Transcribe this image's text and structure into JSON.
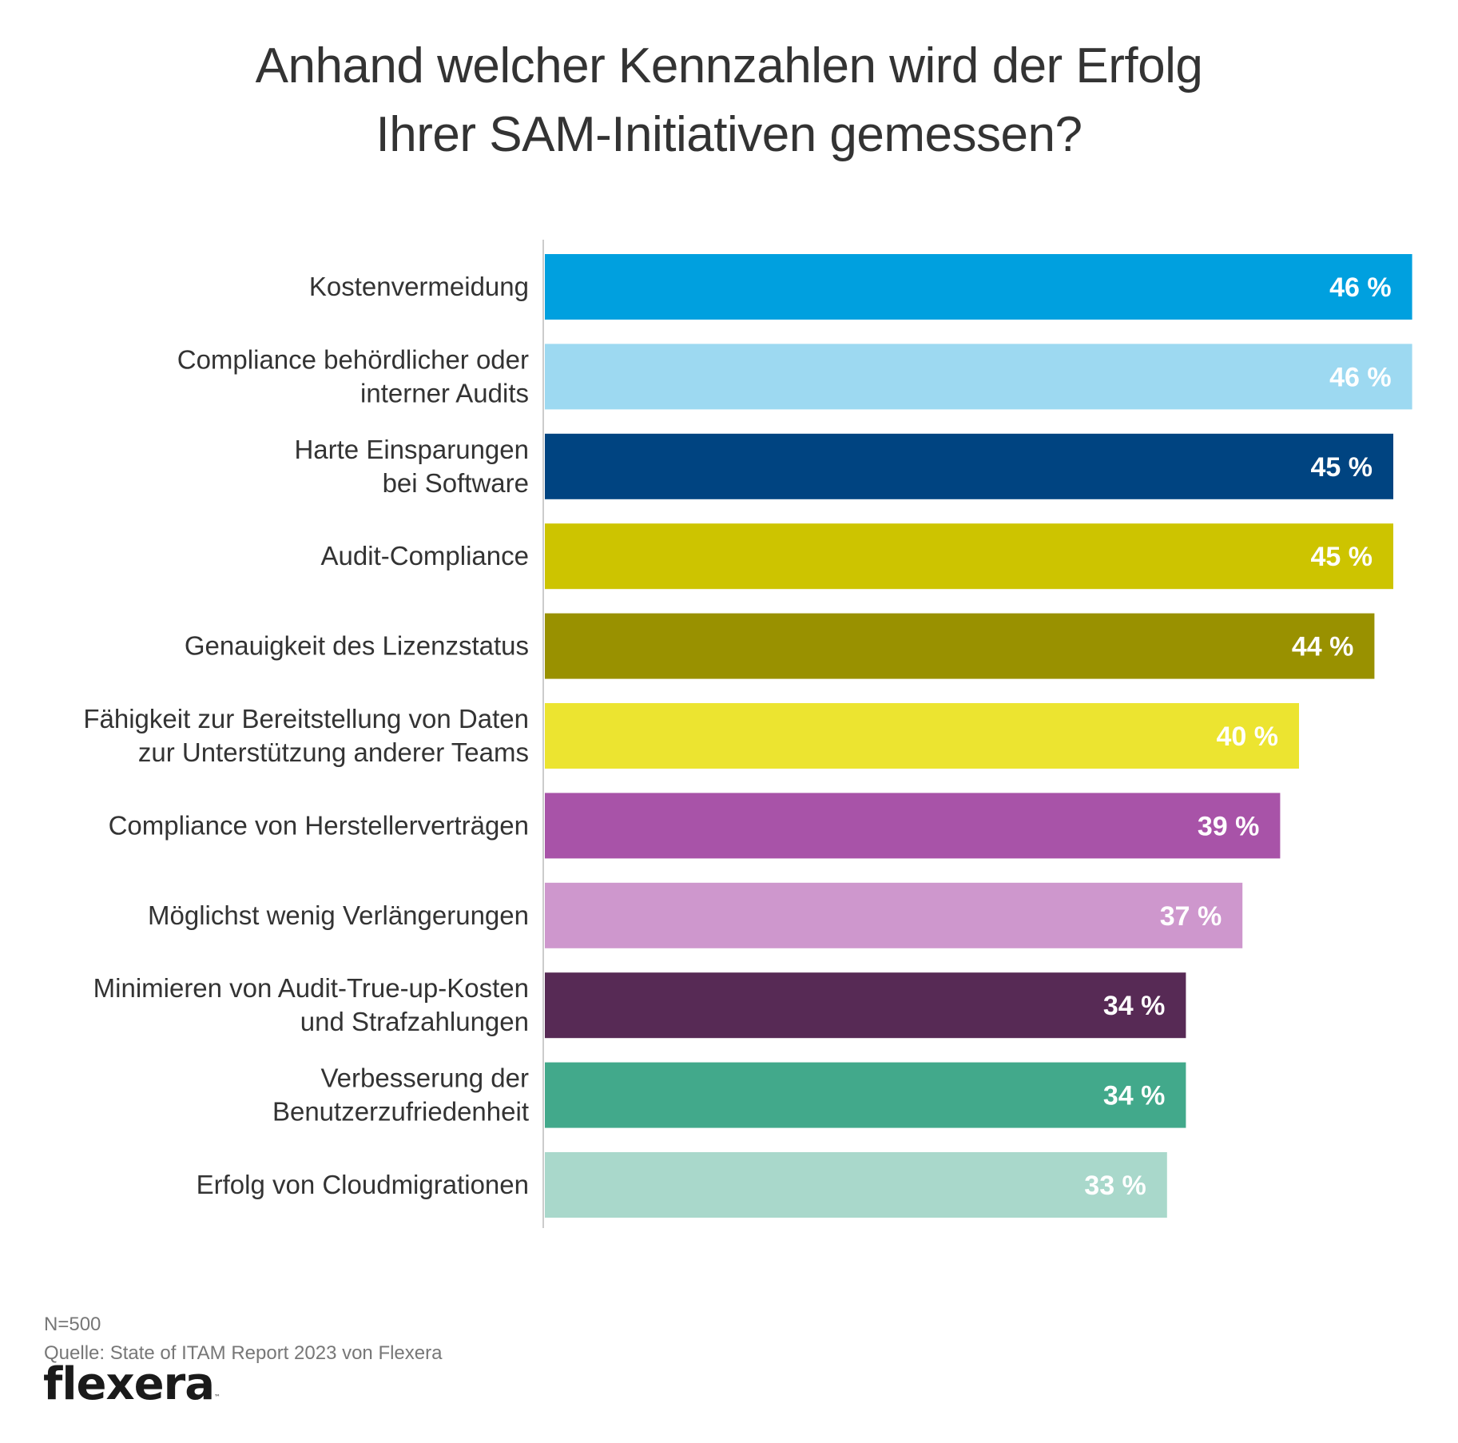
{
  "chart_data": {
    "type": "bar",
    "orientation": "horizontal",
    "title": "Anhand welcher Kennzahlen wird der Erfolg Ihrer SAM-Initiativen gemessen?",
    "title_lines": [
      "Anhand welcher Kennzahlen wird der Erfolg",
      "Ihrer SAM-Initiativen gemessen?"
    ],
    "xlabel": "",
    "ylabel": "",
    "unit": "%",
    "xlim": [
      0,
      46
    ],
    "grid": false,
    "legend": "none",
    "categories": [
      [
        "Kostenvermeidung"
      ],
      [
        "Compliance behördlicher oder",
        "interner Audits"
      ],
      [
        "Harte Einsparungen",
        "bei Software"
      ],
      [
        "Audit-Compliance"
      ],
      [
        "Genauigkeit des Lizenzstatus"
      ],
      [
        "Fähigkeit zur Bereitstellung von Daten",
        "zur Unterstützung anderer Teams"
      ],
      [
        "Compliance von Herstellerverträgen"
      ],
      [
        "Möglichst wenig Verlängerungen"
      ],
      [
        "Minimieren von Audit-True-up-Kosten",
        "und Strafzahlungen"
      ],
      [
        "Verbesserung der",
        "Benutzerzufriedenheit"
      ],
      [
        "Erfolg von Cloudmigrationen"
      ]
    ],
    "values": [
      46,
      46,
      45,
      45,
      44,
      40,
      39,
      37,
      34,
      34,
      33
    ],
    "value_labels": [
      "46 %",
      "46 %",
      "45 %",
      "45 %",
      "44 %",
      "40 %",
      "39 %",
      "37 %",
      "34 %",
      "34 %",
      "33 %"
    ],
    "colors": [
      "#00a0df",
      "#9dd9f1",
      "#004481",
      "#cdc400",
      "#999100",
      "#ece430",
      "#a853a8",
      "#ce97cd",
      "#572a55",
      "#42a98b",
      "#a9d8cb"
    ]
  },
  "footer": {
    "sample": "N=500",
    "source": "Quelle: State of ITAM Report 2023 von Flexera"
  },
  "logo": {
    "text": "flexera",
    "tm": "™"
  }
}
